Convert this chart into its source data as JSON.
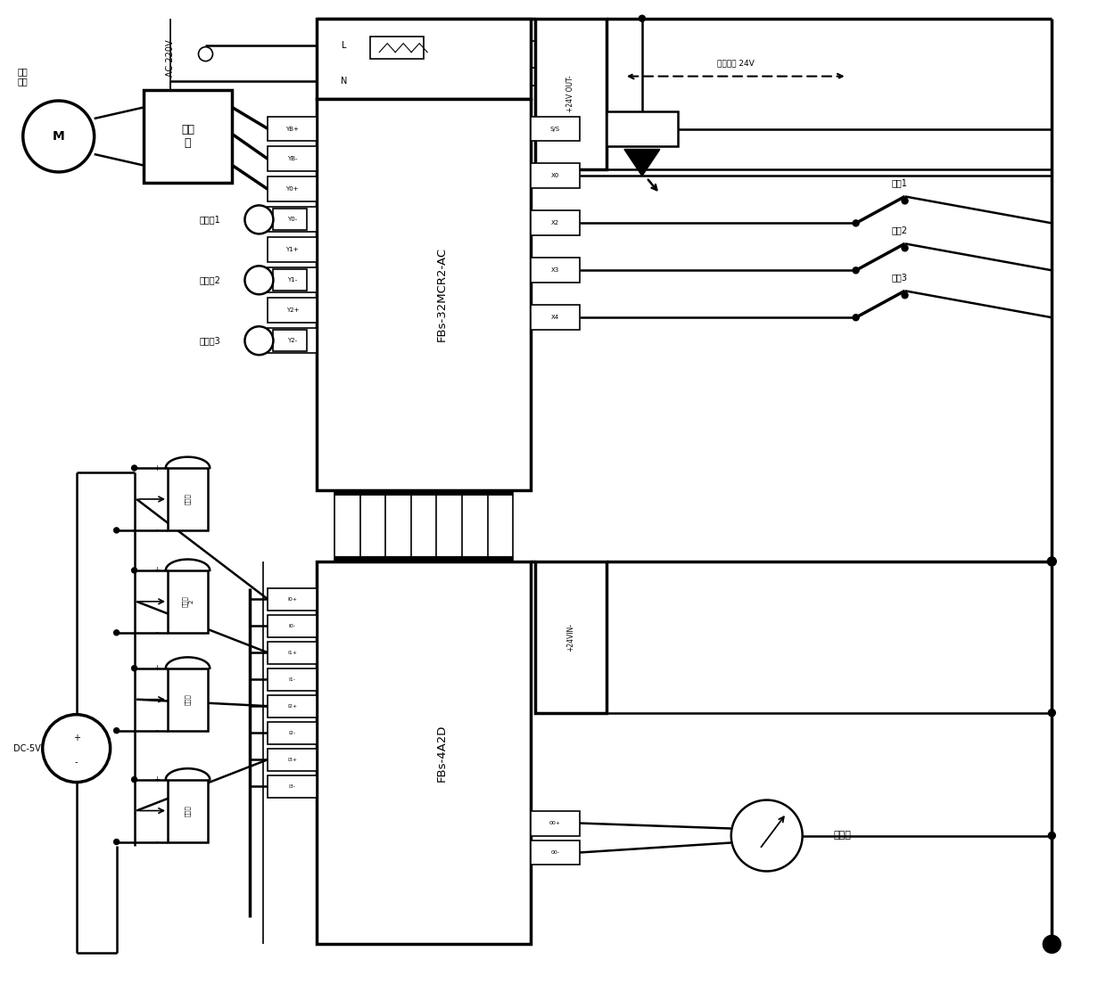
{
  "bg_color": "#ffffff",
  "fig_width": 12.4,
  "fig_height": 11.04,
  "plc1_label": "FBs-32MCR2-AC",
  "plc2_label": "FBs-4A2D",
  "driver_label": "驱动\n器",
  "motor_label": "步进\n电机",
  "ac_label": "AC 220V",
  "alarm1_label": "告警灯1",
  "alarm2_label": "告警灯2",
  "alarm3_label": "告警灯3",
  "power24v_label": "+24V OUT-",
  "power4v_label": "+24VIN-",
  "ext_power_label": "外界电源 24V",
  "dc_label": "DC-5V",
  "voltmeter_label": "电压表",
  "switch1_label": "开兴1",
  "switch2_label": "开兴2",
  "switch3_label": "开兴3",
  "pot1_label": "电位\n计",
  "pot2_label": "电位\n计\n2",
  "pot3_label": "电位\n计",
  "pot4_label": "电位\n计",
  "term_left_plc1": [
    "YB+",
    "YB-",
    "Y0+",
    "Y0-",
    "Y1+",
    "Y1-",
    "Y2+",
    "Y2-"
  ],
  "term_right_plc1": [
    "S/S",
    "X0",
    "X2",
    "X3",
    "X4"
  ],
  "term_left_plc2": [
    "I0+",
    "I0-",
    "I1+",
    "I1-",
    "I2+",
    "I2-",
    "I3+",
    "I3-"
  ],
  "term_right_plc2": [
    "00+",
    "00-"
  ]
}
